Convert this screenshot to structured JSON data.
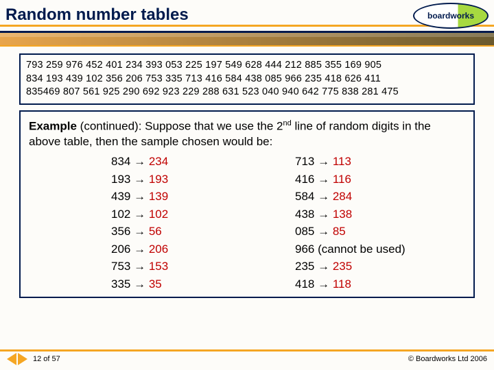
{
  "header": {
    "title": "Random number tables",
    "logo_text": "boardworks"
  },
  "numbers": {
    "line1": "793 259 976 452 401 234 393 053 225 197 549 628 444 212 885 355 169 905",
    "line2": "834 193 439 102 356 206 753 335 713 416 584 438 085 966 235 418 626 411",
    "line3": "835469 807 561 925 290 692 923 229 288 631 523 040 940 642 775 838 281 475"
  },
  "example": {
    "intro_prefix": "Example",
    "intro_rest": " (continued): Suppose that we use the 2",
    "intro_sup": "nd",
    "intro_after": " line of random digits in the above table, then the sample chosen would be:",
    "left": [
      {
        "a": "834",
        "b": "234"
      },
      {
        "a": "193",
        "b": "193"
      },
      {
        "a": "439",
        "b": "139"
      },
      {
        "a": "102",
        "b": "102"
      },
      {
        "a": "356",
        "b": "56"
      },
      {
        "a": "206",
        "b": "206"
      },
      {
        "a": "753",
        "b": "153"
      },
      {
        "a": "335",
        "b": "35"
      }
    ],
    "right": [
      {
        "a": "713",
        "b": "113"
      },
      {
        "a": "416",
        "b": "116"
      },
      {
        "a": "584",
        "b": "284"
      },
      {
        "a": "438",
        "b": "138"
      },
      {
        "a": "085",
        "b": "85"
      },
      {
        "a": "966",
        "note": " (cannot be used)"
      },
      {
        "a": "235",
        "b": "235"
      },
      {
        "a": "418",
        "b": "118"
      }
    ]
  },
  "footer": {
    "page": "12 of 57",
    "copyright": "© Boardworks Ltd 2006"
  },
  "colors": {
    "accent_navy": "#001a4d",
    "accent_orange": "#f5a623",
    "red_text": "#c00000"
  }
}
